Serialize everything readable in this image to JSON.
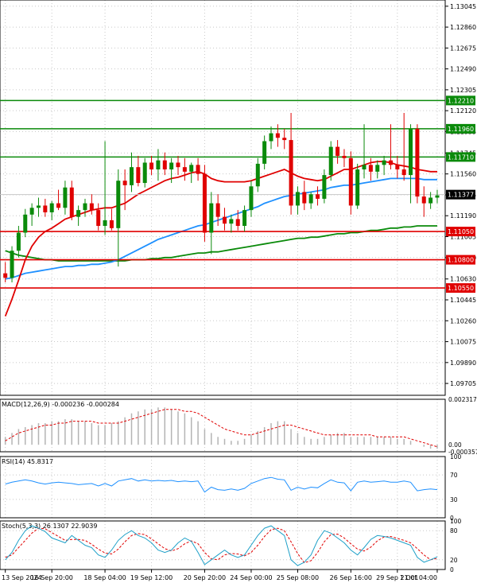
{
  "chart_data": {
    "type": "candlestick",
    "price_panel": {
      "ylim": [
        1.096,
        1.131
      ],
      "yticks": [
        "1.13045",
        "1.12860",
        "1.12675",
        "1.12490",
        "1.12305",
        "1.12120",
        "1.11935",
        "1.11745",
        "1.11560",
        "1.11375",
        "1.11190",
        "1.11005",
        "1.10820",
        "1.10630",
        "1.10445",
        "1.10260",
        "1.10075",
        "1.09890",
        "1.09705"
      ],
      "horizontal_levels": [
        {
          "price": 1.1221,
          "label": "1.12210",
          "color": "#0a8a0a"
        },
        {
          "price": 1.1196,
          "label": "1.11960",
          "color": "#0a8a0a"
        },
        {
          "price": 1.1171,
          "label": "1.11710",
          "color": "#0a8a0a"
        },
        {
          "price": 1.1105,
          "label": "1.11050",
          "color": "#e00000"
        },
        {
          "price": 1.108,
          "label": "1.10800",
          "color": "#e00000"
        },
        {
          "price": 1.1055,
          "label": "1.10550",
          "color": "#e00000"
        }
      ],
      "current_price": {
        "price": 1.11377,
        "label": "1.11377"
      },
      "candles": [
        [
          1.1068,
          1.1078,
          1.106,
          1.1064
        ],
        [
          1.1064,
          1.1092,
          1.106,
          1.1088
        ],
        [
          1.1088,
          1.111,
          1.1082,
          1.1104
        ],
        [
          1.1104,
          1.1125,
          1.11,
          1.112
        ],
        [
          1.112,
          1.113,
          1.111,
          1.1126
        ],
        [
          1.1126,
          1.1135,
          1.1118,
          1.1128
        ],
        [
          1.1128,
          1.1134,
          1.1118,
          1.1122
        ],
        [
          1.1122,
          1.1132,
          1.1115,
          1.113
        ],
        [
          1.113,
          1.1142,
          1.1124,
          1.1126
        ],
        [
          1.1126,
          1.115,
          1.112,
          1.1144
        ],
        [
          1.1144,
          1.115,
          1.1115,
          1.1118
        ],
        [
          1.1118,
          1.1128,
          1.111,
          1.1124
        ],
        [
          1.1124,
          1.1134,
          1.1118,
          1.113
        ],
        [
          1.113,
          1.1138,
          1.112,
          1.1124
        ],
        [
          1.1124,
          1.113,
          1.1106,
          1.111
        ],
        [
          1.111,
          1.1185,
          1.1102,
          1.1115
        ],
        [
          1.1115,
          1.1125,
          1.1106,
          1.1108
        ],
        [
          1.1108,
          1.116,
          1.1074,
          1.115
        ],
        [
          1.115,
          1.116,
          1.1124,
          1.1146
        ],
        [
          1.1146,
          1.1175,
          1.114,
          1.1162
        ],
        [
          1.1162,
          1.1172,
          1.1145,
          1.1148
        ],
        [
          1.1148,
          1.117,
          1.1144,
          1.1166
        ],
        [
          1.1166,
          1.1172,
          1.1155,
          1.116
        ],
        [
          1.116,
          1.1178,
          1.115,
          1.1168
        ],
        [
          1.1168,
          1.1175,
          1.1155,
          1.116
        ],
        [
          1.116,
          1.117,
          1.1148,
          1.1166
        ],
        [
          1.1166,
          1.1172,
          1.1155,
          1.1162
        ],
        [
          1.1162,
          1.117,
          1.115,
          1.1158
        ],
        [
          1.1158,
          1.1166,
          1.1148,
          1.1164
        ],
        [
          1.1164,
          1.117,
          1.115,
          1.1156
        ],
        [
          1.1156,
          1.1164,
          1.1096,
          1.1104
        ],
        [
          1.1104,
          1.114,
          1.1085,
          1.113
        ],
        [
          1.113,
          1.1138,
          1.111,
          1.1118
        ],
        [
          1.1118,
          1.1126,
          1.1106,
          1.1112
        ],
        [
          1.1112,
          1.112,
          1.1104,
          1.1116
        ],
        [
          1.1116,
          1.1124,
          1.1106,
          1.111
        ],
        [
          1.111,
          1.1128,
          1.1105,
          1.1124
        ],
        [
          1.1124,
          1.115,
          1.1118,
          1.1145
        ],
        [
          1.1145,
          1.117,
          1.114,
          1.1165
        ],
        [
          1.1165,
          1.119,
          1.116,
          1.1185
        ],
        [
          1.1185,
          1.1198,
          1.1178,
          1.1192
        ],
        [
          1.1192,
          1.12,
          1.118,
          1.1188
        ],
        [
          1.1188,
          1.1196,
          1.1178,
          1.1186
        ],
        [
          1.1186,
          1.121,
          1.112,
          1.1128
        ],
        [
          1.1128,
          1.1145,
          1.112,
          1.114
        ],
        [
          1.114,
          1.115,
          1.1124,
          1.113
        ],
        [
          1.113,
          1.114,
          1.1125,
          1.1138
        ],
        [
          1.1138,
          1.1145,
          1.1128,
          1.1134
        ],
        [
          1.1134,
          1.116,
          1.113,
          1.1155
        ],
        [
          1.1155,
          1.1185,
          1.115,
          1.118
        ],
        [
          1.118,
          1.1186,
          1.1165,
          1.1172
        ],
        [
          1.1172,
          1.1178,
          1.1162,
          1.117
        ],
        [
          1.117,
          1.1176,
          1.112,
          1.1128
        ],
        [
          1.1128,
          1.1165,
          1.1125,
          1.116
        ],
        [
          1.116,
          1.12,
          1.1152,
          1.1164
        ],
        [
          1.1164,
          1.117,
          1.115,
          1.1158
        ],
        [
          1.1158,
          1.1168,
          1.1152,
          1.1164
        ],
        [
          1.1164,
          1.1172,
          1.1155,
          1.1168
        ],
        [
          1.1168,
          1.12,
          1.116,
          1.1164
        ],
        [
          1.1164,
          1.1172,
          1.1152,
          1.116
        ],
        [
          1.116,
          1.121,
          1.115,
          1.1155
        ],
        [
          1.1155,
          1.12,
          1.113,
          1.1196
        ],
        [
          1.1196,
          1.12,
          1.113,
          1.1136
        ],
        [
          1.1136,
          1.1145,
          1.1118,
          1.113
        ],
        [
          1.113,
          1.114,
          1.1125,
          1.1135
        ],
        [
          1.1135,
          1.1142,
          1.113,
          1.1137
        ]
      ],
      "ma_fast": [
        1.103,
        1.1045,
        1.1062,
        1.108,
        1.1092,
        1.11,
        1.1105,
        1.1108,
        1.1112,
        1.1116,
        1.1118,
        1.112,
        1.1122,
        1.1124,
        1.1125,
        1.1126,
        1.1126,
        1.1128,
        1.113,
        1.1134,
        1.1138,
        1.1141,
        1.1144,
        1.1147,
        1.115,
        1.1152,
        1.1153,
        1.1155,
        1.1157,
        1.1158,
        1.1156,
        1.1152,
        1.115,
        1.1149,
        1.1149,
        1.1149,
        1.1149,
        1.115,
        1.1152,
        1.1154,
        1.1156,
        1.1158,
        1.116,
        1.1157,
        1.1154,
        1.1152,
        1.1151,
        1.115,
        1.1151,
        1.1154,
        1.1157,
        1.116,
        1.116,
        1.1162,
        1.1164,
        1.1166,
        1.1167,
        1.1167,
        1.1166,
        1.1164,
        1.1163,
        1.1162,
        1.116,
        1.1159,
        1.1158,
        1.1158
      ],
      "ma_mid": [
        1.1063,
        1.1064,
        1.1066,
        1.1068,
        1.1069,
        1.107,
        1.1071,
        1.1072,
        1.1073,
        1.1074,
        1.1074,
        1.1075,
        1.1075,
        1.1076,
        1.1076,
        1.1077,
        1.1078,
        1.108,
        1.1083,
        1.1086,
        1.1089,
        1.1092,
        1.1095,
        1.1098,
        1.11,
        1.1102,
        1.1104,
        1.1106,
        1.1108,
        1.111,
        1.1111,
        1.1113,
        1.1115,
        1.1117,
        1.1119,
        1.1121,
        1.1123,
        1.1125,
        1.1127,
        1.113,
        1.1132,
        1.1134,
        1.1136,
        1.1137,
        1.1138,
        1.1139,
        1.114,
        1.1141,
        1.1142,
        1.1144,
        1.1145,
        1.1146,
        1.1146,
        1.1147,
        1.1148,
        1.1149,
        1.115,
        1.1151,
        1.1152,
        1.1152,
        1.1152,
        1.1152,
        1.1152,
        1.1151,
        1.1151,
        1.1151
      ],
      "ma_slow": [
        1.1088,
        1.1086,
        1.1084,
        1.1083,
        1.1082,
        1.1081,
        1.108,
        1.108,
        1.1079,
        1.1079,
        1.1079,
        1.1079,
        1.1079,
        1.1079,
        1.1079,
        1.1079,
        1.1079,
        1.1079,
        1.1079,
        1.108,
        1.108,
        1.108,
        1.1081,
        1.1081,
        1.1082,
        1.1082,
        1.1083,
        1.1084,
        1.1085,
        1.1086,
        1.1086,
        1.1087,
        1.1087,
        1.1088,
        1.1089,
        1.109,
        1.1091,
        1.1092,
        1.1093,
        1.1094,
        1.1095,
        1.1096,
        1.1097,
        1.1098,
        1.1099,
        1.1099,
        1.11,
        1.11,
        1.1101,
        1.1102,
        1.1103,
        1.1103,
        1.1104,
        1.1104,
        1.1105,
        1.1106,
        1.1106,
        1.1107,
        1.1108,
        1.1108,
        1.1109,
        1.1109,
        1.111,
        1.111,
        1.111,
        1.111
      ]
    },
    "macd_panel": {
      "label": "MACD(12,26,9) -0.000236 -0.000284",
      "ylim": [
        -0.000357,
        0.002317
      ],
      "yticks": [
        "0.002317",
        "0.00",
        "-0.000357"
      ],
      "histogram": [
        0.0004,
        0.0006,
        0.0008,
        0.0009,
        0.001,
        0.0011,
        0.0011,
        0.0012,
        0.0012,
        0.0013,
        0.0013,
        0.0012,
        0.0012,
        0.0011,
        0.001,
        0.001,
        0.0011,
        0.0012,
        0.0014,
        0.0016,
        0.0017,
        0.0018,
        0.0018,
        0.0019,
        0.0019,
        0.0018,
        0.0017,
        0.0016,
        0.0014,
        0.0012,
        0.0008,
        0.0006,
        0.0004,
        0.0003,
        0.0002,
        0.0002,
        0.0003,
        0.0005,
        0.0007,
        0.0009,
        0.0011,
        0.0012,
        0.0012,
        0.0008,
        0.0006,
        0.0004,
        0.0003,
        0.0003,
        0.0004,
        0.0005,
        0.0006,
        0.0006,
        0.0004,
        0.0004,
        0.0004,
        0.0004,
        0.0004,
        0.0004,
        0.0004,
        0.0003,
        0.0003,
        0.0002,
        0.0,
        -0.0001,
        -0.0002,
        -0.0002
      ],
      "signal": [
        0.0002,
        0.0004,
        0.0006,
        0.0007,
        0.0008,
        0.0009,
        0.001,
        0.001,
        0.0011,
        0.0011,
        0.0012,
        0.0012,
        0.0012,
        0.0012,
        0.0011,
        0.0011,
        0.0011,
        0.0011,
        0.0012,
        0.0013,
        0.0014,
        0.0015,
        0.0016,
        0.0017,
        0.0018,
        0.0018,
        0.0018,
        0.0017,
        0.0017,
        0.0016,
        0.0014,
        0.0012,
        0.001,
        0.0008,
        0.0007,
        0.0006,
        0.0005,
        0.0005,
        0.0006,
        0.0007,
        0.0008,
        0.0009,
        0.001,
        0.001,
        0.0009,
        0.0008,
        0.0007,
        0.0006,
        0.0005,
        0.0005,
        0.0005,
        0.0005,
        0.0005,
        0.0005,
        0.0005,
        0.0005,
        0.0004,
        0.0004,
        0.0004,
        0.0004,
        0.0004,
        0.0003,
        0.0002,
        0.0001,
        0.0,
        -0.0001
      ]
    },
    "rsi_panel": {
      "label": "RSI(14) 45.8317",
      "ylim": [
        0,
        100
      ],
      "yticks": [
        "100",
        "70",
        "30",
        "0"
      ],
      "values": [
        55,
        58,
        60,
        62,
        60,
        57,
        55,
        57,
        58,
        57,
        56,
        54,
        55,
        56,
        52,
        56,
        52,
        60,
        62,
        64,
        60,
        62,
        60,
        61,
        60,
        61,
        59,
        60,
        59,
        60,
        42,
        50,
        46,
        45,
        47,
        45,
        48,
        56,
        60,
        64,
        66,
        63,
        62,
        45,
        50,
        47,
        50,
        49,
        56,
        62,
        58,
        57,
        44,
        58,
        60,
        58,
        59,
        60,
        58,
        58,
        60,
        58,
        44,
        46,
        47,
        46
      ]
    },
    "stoch_panel": {
      "label": "Stoch(5,3,3) 26.1307 22.9039",
      "ylim": [
        0,
        100
      ],
      "yticks": [
        "100",
        "80",
        "20",
        "0"
      ],
      "k": [
        20,
        35,
        60,
        80,
        90,
        85,
        78,
        65,
        60,
        55,
        70,
        60,
        50,
        45,
        30,
        25,
        40,
        60,
        72,
        80,
        70,
        65,
        55,
        40,
        35,
        40,
        55,
        65,
        58,
        35,
        10,
        20,
        30,
        40,
        30,
        25,
        30,
        50,
        70,
        85,
        90,
        80,
        70,
        20,
        8,
        15,
        30,
        60,
        80,
        75,
        65,
        55,
        40,
        30,
        45,
        62,
        70,
        68,
        65,
        60,
        55,
        50,
        25,
        15,
        20,
        26
      ],
      "d": [
        25,
        30,
        45,
        60,
        75,
        85,
        84,
        76,
        68,
        60,
        62,
        62,
        60,
        52,
        42,
        34,
        32,
        42,
        57,
        70,
        74,
        72,
        63,
        53,
        43,
        38,
        43,
        53,
        59,
        53,
        35,
        22,
        20,
        30,
        33,
        32,
        28,
        35,
        50,
        68,
        82,
        85,
        80,
        57,
        33,
        14,
        18,
        35,
        57,
        72,
        73,
        65,
        53,
        42,
        38,
        46,
        59,
        67,
        68,
        64,
        60,
        55,
        43,
        30,
        20,
        23
      ]
    },
    "x_ticks": [
      {
        "index": 0,
        "label": "13 Sep 2024"
      },
      {
        "index": 7,
        "label": "16 Sep 20:00"
      },
      {
        "index": 15,
        "label": "18 Sep 04:00"
      },
      {
        "index": 22,
        "label": "19 Sep 12:00"
      },
      {
        "index": 30,
        "label": "20 Sep 20:00"
      },
      {
        "index": 37,
        "label": "24 Sep 00:00"
      },
      {
        "index": 44,
        "label": "25 Sep 08:00"
      },
      {
        "index": 52,
        "label": "26 Sep 16:00"
      },
      {
        "index": 59,
        "label": "29 Sep 21:01"
      },
      {
        "index": 65,
        "label": "1 Oct 04:00"
      }
    ],
    "colors": {
      "up": "#0a8a0a",
      "down": "#e00000",
      "ma_fast": "#e00000",
      "ma_mid": "#1e90ff",
      "ma_slow": "#0a8a0a",
      "grid": "#c8c8c8",
      "axis": "#000000",
      "panel_line": "#1e90ff",
      "macd_hist": "#b4b4b4",
      "macd_signal": "#e00000",
      "stoch_k": "#1ea0c8",
      "stoch_d": "#e00000"
    }
  }
}
